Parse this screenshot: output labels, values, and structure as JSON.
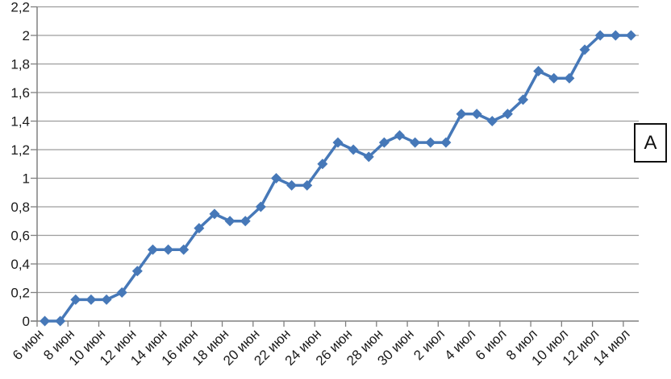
{
  "chart_data": {
    "type": "line",
    "title": "",
    "xlabel": "",
    "ylabel": "",
    "x_tick_labels": [
      "6 июн",
      "8 июн",
      "10 июн",
      "12 июн",
      "14 июн",
      "16 июн",
      "18 июн",
      "20 июн",
      "22 июн",
      "24 июн",
      "26 июн",
      "28 июн",
      "30 июн",
      "2 июл",
      "4 июл",
      "6 июл",
      "8 июл",
      "10 июл",
      "12 июл",
      "14 июл"
    ],
    "x_points_per_labeled_tick": 2,
    "series": [
      {
        "name": "А",
        "marker": "diamond",
        "values": [
          0,
          0,
          0.15,
          0.15,
          0.15,
          0.2,
          0.35,
          0.5,
          0.5,
          0.5,
          0.65,
          0.75,
          0.7,
          0.7,
          0.8,
          1,
          0.95,
          0.95,
          1.1,
          1.25,
          1.2,
          1.15,
          1.25,
          1.3,
          1.25,
          1.25,
          1.25,
          1.45,
          1.45,
          1.4,
          1.45,
          1.55,
          1.75,
          1.7,
          1.7,
          1.9,
          2,
          2,
          2
        ]
      }
    ],
    "y_axis": {
      "min": 0,
      "max": 2.2,
      "step": 0.2,
      "tick_labels": [
        "0",
        "0,2",
        "0,4",
        "0,6",
        "0,8",
        "1",
        "1,2",
        "1,4",
        "1,6",
        "1,8",
        "2",
        "2,2"
      ],
      "decimal_separator": ","
    },
    "grid": "horizontal",
    "legend_position": "right",
    "colors": {
      "series": "#4678B8",
      "gridline": "#9D9D9D",
      "axis": "#808080",
      "text": "#1A1A1A",
      "legend_border": "#111111"
    }
  },
  "legend": {
    "label": "А"
  }
}
